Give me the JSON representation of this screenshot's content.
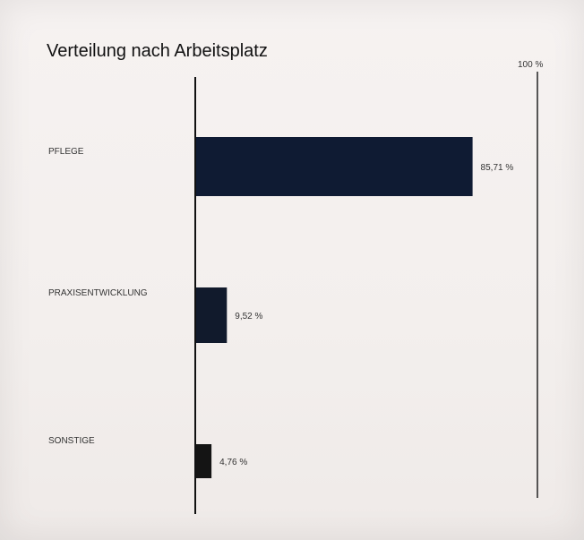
{
  "chart_data": {
    "type": "bar",
    "orientation": "horizontal",
    "title": "Verteilung nach Arbeitsplatz",
    "corner_label": "100 %",
    "categories": [
      "PFLEGE",
      "PRAXISENTWICKLUNG",
      "SONSTIGE"
    ],
    "values": [
      85.71,
      9.52,
      4.76
    ],
    "value_labels": [
      "85,71 %",
      "9,52 %",
      "4,76 %"
    ],
    "xlim": [
      0,
      100
    ],
    "bar_colors": [
      "#0f1b33",
      "#111a2c",
      "#141414"
    ],
    "grid": false,
    "legend": "none"
  }
}
